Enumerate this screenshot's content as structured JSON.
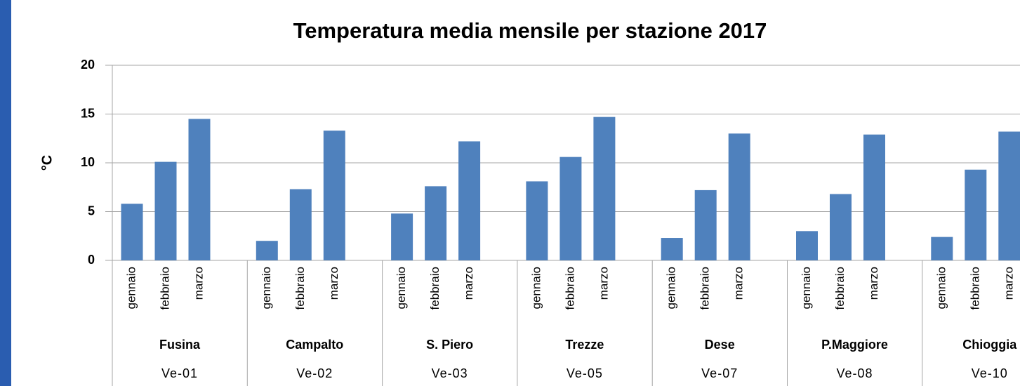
{
  "chart_data": {
    "type": "bar",
    "title": "Temperatura media mensile per stazione 2017",
    "y_label": "°C",
    "categories": [
      "gennaio",
      "febbraio",
      "marzo",
      "gennaio",
      "febbraio",
      "marzo",
      "gennaio",
      "febbraio",
      "marzo",
      "gennaio",
      "febbraio",
      "marzo",
      "gennaio",
      "febbraio",
      "marzo",
      "gennaio",
      "febbraio",
      "marzo",
      "gennaio",
      "febbraio",
      "marzo"
    ],
    "groups": [
      "Fusina",
      "Campalto",
      "S. Piero",
      "Trezze",
      "Dese",
      "P.Maggiore",
      "Chioggia"
    ],
    "group_codes": [
      "Ve-01",
      "Ve-02",
      "Ve-03",
      "Ve-05",
      "Ve-07",
      "Ve-08",
      "Ve-10"
    ],
    "values": [
      5.8,
      10.1,
      14.5,
      2.0,
      7.3,
      13.3,
      4.8,
      7.6,
      12.2,
      8.1,
      10.6,
      14.7,
      2.3,
      7.2,
      13.0,
      3.0,
      6.8,
      12.9,
      2.4,
      9.3,
      13.2
    ],
    "color": "#4f81bd",
    "ylim": [
      0,
      20
    ],
    "yticks": [
      0,
      5,
      10,
      15,
      20
    ],
    "grid": true
  }
}
